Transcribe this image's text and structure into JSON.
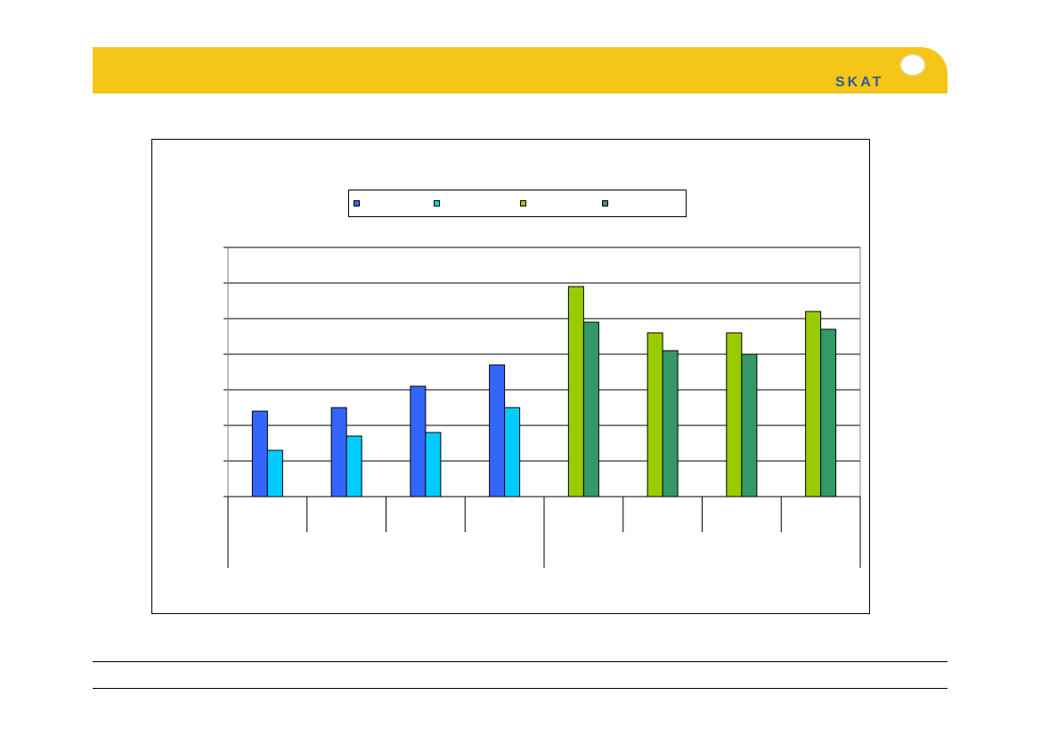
{
  "header": {
    "band_color": "#f5c518",
    "logo_text": "SKAT",
    "logo_icon": "crown-seal-icon"
  },
  "chart_data": {
    "type": "bar",
    "title": "",
    "xlabel": "",
    "ylabel": "",
    "ylim": [
      0,
      7
    ],
    "grid": true,
    "legend_position": "top",
    "categories": [
      "",
      "",
      "",
      "",
      "",
      "",
      "",
      ""
    ],
    "series": [
      {
        "name": "",
        "color": "#3366ff",
        "values": [
          2.4,
          2.5,
          3.1,
          3.7,
          null,
          null,
          null,
          null
        ]
      },
      {
        "name": "",
        "color": "#00ccff",
        "values": [
          1.3,
          1.7,
          1.8,
          2.5,
          null,
          null,
          null,
          null
        ]
      },
      {
        "name": "",
        "color": "#99cc00",
        "values": [
          null,
          null,
          null,
          null,
          5.9,
          4.6,
          4.6,
          5.2
        ]
      },
      {
        "name": "",
        "color": "#339966",
        "values": [
          null,
          null,
          null,
          null,
          4.9,
          4.1,
          4.0,
          4.7
        ]
      }
    ],
    "groups": [
      "",
      ""
    ]
  }
}
